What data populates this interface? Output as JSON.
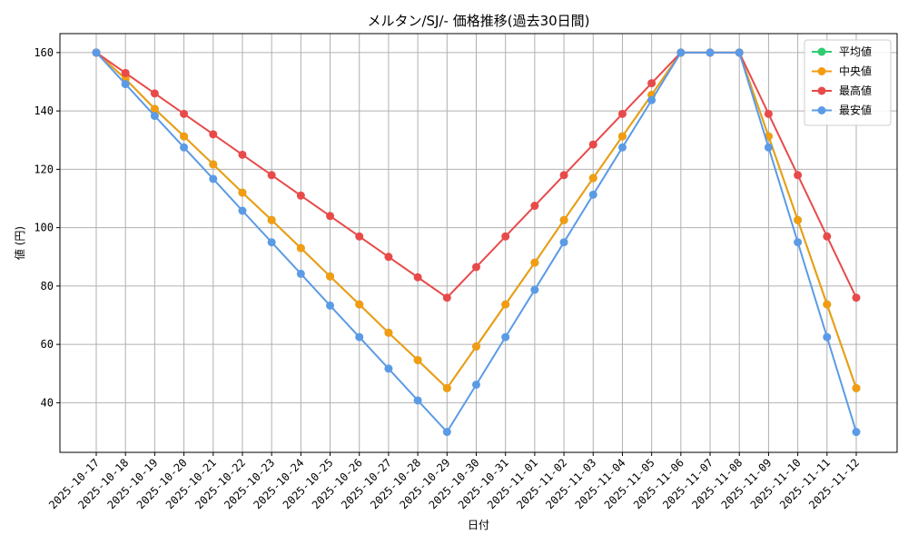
{
  "chart_data": {
    "type": "line",
    "title": "メルタン/SJ/- 価格推移(過去30日間)",
    "xlabel": "日付",
    "ylabel": "値 (円)",
    "x": [
      "2025-10-17",
      "2025-10-18",
      "2025-10-19",
      "2025-10-20",
      "2025-10-21",
      "2025-10-22",
      "2025-10-23",
      "2025-10-24",
      "2025-10-25",
      "2025-10-26",
      "2025-10-27",
      "2025-10-28",
      "2025-10-29",
      "2025-10-30",
      "2025-10-31",
      "2025-11-01",
      "2025-11-02",
      "2025-11-03",
      "2025-11-04",
      "2025-11-05",
      "2025-11-06",
      "2025-11-07",
      "2025-11-08",
      "2025-11-09",
      "2025-11-10",
      "2025-11-11",
      "2025-11-12"
    ],
    "yticks": [
      40,
      60,
      80,
      100,
      120,
      140,
      160
    ],
    "ylim": [
      23,
      166.5
    ],
    "grid": true,
    "legend": "top-right",
    "series": [
      {
        "name": "平均値",
        "color": "#2ecc71",
        "values": [
          160,
          151,
          140.7,
          131.3,
          121.7,
          112,
          102.6,
          93,
          83.3,
          73.7,
          64,
          54.6,
          45,
          59.3,
          73.7,
          88,
          102.6,
          117,
          131.3,
          145.5,
          160,
          160,
          160,
          131.3,
          102.6,
          73.7,
          45
        ]
      },
      {
        "name": "中央値",
        "color": "#f39c12",
        "values": [
          160,
          151,
          140.7,
          131.3,
          121.7,
          112,
          102.6,
          93,
          83.3,
          73.7,
          64,
          54.6,
          45,
          59.3,
          73.7,
          88,
          102.6,
          117,
          131.3,
          145.5,
          160,
          160,
          160,
          131.3,
          102.6,
          73.7,
          45
        ]
      },
      {
        "name": "最高値",
        "color": "#e84a4a",
        "values": [
          160,
          153,
          146,
          139,
          132,
          125,
          118,
          111,
          104,
          97,
          90,
          83,
          76,
          86.5,
          97,
          107.5,
          118,
          128.5,
          139,
          149.5,
          160,
          160,
          160,
          139,
          118,
          97,
          76
        ]
      },
      {
        "name": "最安値",
        "color": "#5b9be6",
        "values": [
          160,
          149.2,
          138.3,
          127.5,
          116.7,
          105.8,
          95,
          84.2,
          73.3,
          62.5,
          51.7,
          40.8,
          30,
          46.2,
          62.5,
          78.7,
          95,
          111.3,
          127.5,
          143.7,
          160,
          160,
          160,
          127.5,
          95,
          62.5,
          30
        ]
      }
    ]
  }
}
